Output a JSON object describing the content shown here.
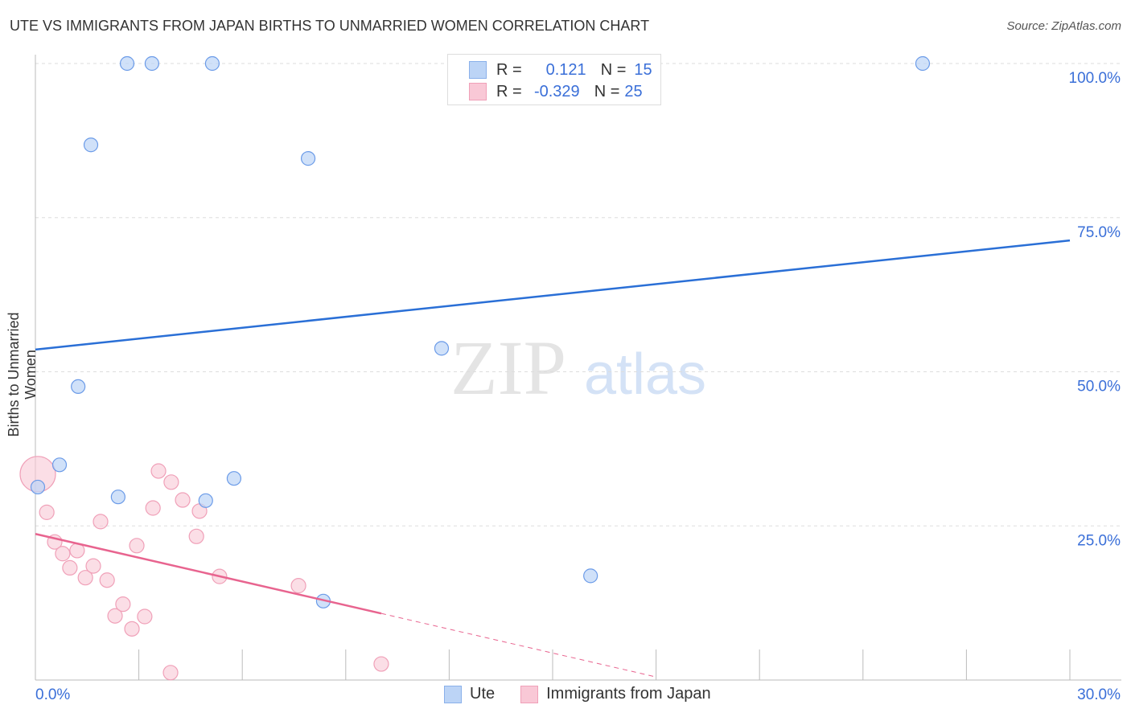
{
  "title": "UTE VS IMMIGRANTS FROM JAPAN BIRTHS TO UNMARRIED WOMEN CORRELATION CHART",
  "source": "Source: ZipAtlas.com",
  "watermark": "ZIPatlas",
  "legend": {
    "rows": [
      {
        "r_label": "R =",
        "r_value": "0.121",
        "n_label": "N =",
        "n_value": "15"
      },
      {
        "r_label": "R =",
        "r_value": "-0.329",
        "n_label": "N =",
        "n_value": "25"
      }
    ]
  },
  "chart_data": {
    "type": "scatter",
    "title": "UTE VS IMMIGRANTS FROM JAPAN BIRTHS TO UNMARRIED WOMEN CORRELATION CHART",
    "xlabel": "",
    "ylabel": "Births to Unmarried Women",
    "xlim": [
      0,
      30
    ],
    "ylim": [
      0,
      100
    ],
    "x_tick_labels": [
      "0.0%",
      "30.0%"
    ],
    "y_tick_labels": [
      "100.0%",
      "75.0%",
      "50.0%",
      "25.0%"
    ],
    "y_ticks": [
      100,
      75,
      50,
      25
    ],
    "grid": true,
    "legend_position": "bottom",
    "colors": {
      "ute": "#6b9be8",
      "japan": "#f0a0b8",
      "ute_line": "#2a6fd6",
      "japan_line": "#e8648f"
    },
    "series": [
      {
        "name": "Ute",
        "r": 0.121,
        "n": 15,
        "points": [
          [
            2.66,
            100
          ],
          [
            3.38,
            100
          ],
          [
            5.13,
            100
          ],
          [
            25.73,
            100
          ],
          [
            1.61,
            86.8
          ],
          [
            7.91,
            84.6
          ],
          [
            11.78,
            53.8
          ],
          [
            1.24,
            47.6
          ],
          [
            0.7,
            34.9
          ],
          [
            0.07,
            31.3
          ],
          [
            2.4,
            29.7
          ],
          [
            4.94,
            29.1
          ],
          [
            5.76,
            32.7
          ],
          [
            16.1,
            16.9
          ],
          [
            8.35,
            12.8
          ]
        ],
        "trend": {
          "x": [
            0,
            30
          ],
          "y": [
            53.6,
            71.3
          ]
        }
      },
      {
        "name": "Immigrants from Japan",
        "r": -0.329,
        "n": 25,
        "points": [
          [
            0.07,
            33.4,
            "big"
          ],
          [
            0.33,
            27.2
          ],
          [
            0.56,
            22.4
          ],
          [
            0.79,
            20.5
          ],
          [
            1.0,
            18.2
          ],
          [
            1.21,
            21.0
          ],
          [
            1.45,
            16.6
          ],
          [
            1.68,
            18.5
          ],
          [
            1.89,
            25.7
          ],
          [
            2.08,
            16.2
          ],
          [
            2.31,
            10.4
          ],
          [
            2.54,
            12.3
          ],
          [
            2.8,
            8.3
          ],
          [
            2.94,
            21.8
          ],
          [
            3.17,
            10.3
          ],
          [
            3.41,
            27.9
          ],
          [
            3.57,
            33.9
          ],
          [
            3.92,
            1.2
          ],
          [
            3.94,
            32.1
          ],
          [
            4.27,
            29.2
          ],
          [
            4.67,
            23.3
          ],
          [
            4.76,
            27.4
          ],
          [
            5.34,
            16.8
          ],
          [
            7.63,
            15.3
          ],
          [
            10.03,
            2.6
          ]
        ],
        "trend": {
          "x": [
            0,
            10.03
          ],
          "y": [
            23.7,
            10.8
          ]
        },
        "trend_extension": {
          "x": [
            10.03,
            18
          ],
          "y": [
            10.8,
            0.5
          ]
        }
      }
    ]
  }
}
